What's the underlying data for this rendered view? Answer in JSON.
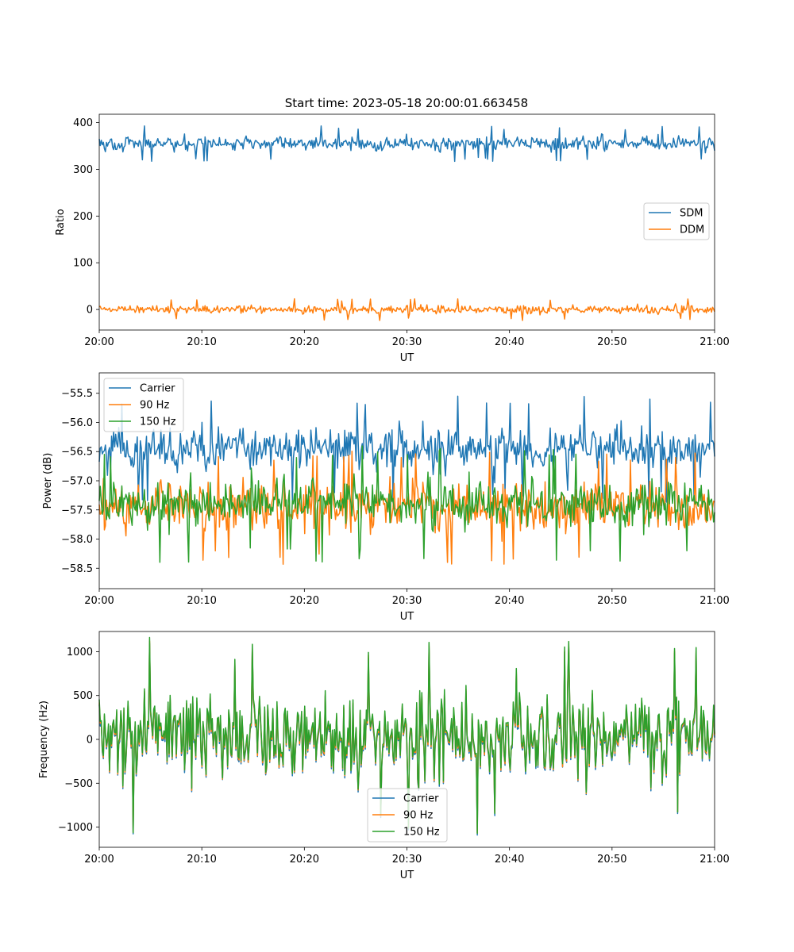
{
  "figure": {
    "title": "Start time: 2023-05-18 20:00:01.663458"
  },
  "chart_data": [
    {
      "type": "line",
      "title": "Start time: 2023-05-18 20:00:01.663458",
      "xlabel": "UT",
      "ylabel": "Ratio",
      "x_range": [
        "20:00",
        "21:00"
      ],
      "x_ticks": [
        "20:00",
        "20:10",
        "20:20",
        "20:30",
        "20:40",
        "20:50",
        "21:00"
      ],
      "ylim": [
        -44,
        418
      ],
      "y_ticks": [
        0,
        100,
        200,
        300,
        400
      ],
      "legend_position": "center-right",
      "series": [
        {
          "name": "SDM",
          "color": "#1f77b4",
          "mean": 355,
          "noise": 12,
          "spike": 38
        },
        {
          "name": "DDM",
          "color": "#ff7f0e",
          "mean": 0,
          "noise": 7,
          "spike": 24
        }
      ]
    },
    {
      "type": "line",
      "title": "",
      "xlabel": "UT",
      "ylabel": "Power (dB)",
      "x_range": [
        "20:00",
        "21:00"
      ],
      "x_ticks": [
        "20:00",
        "20:10",
        "20:20",
        "20:30",
        "20:40",
        "20:50",
        "21:00"
      ],
      "ylim": [
        -58.85,
        -55.15
      ],
      "y_ticks": [
        -58.5,
        -58.0,
        -57.5,
        -57.0,
        -56.5,
        -56.0,
        -55.5
      ],
      "legend_position": "upper-left",
      "series": [
        {
          "name": "Carrier",
          "color": "#1f77b4",
          "mean": -56.45,
          "noise": 0.3,
          "spike": 0.95
        },
        {
          "name": "90 Hz",
          "color": "#ff7f0e",
          "mean": -57.45,
          "noise": 0.33,
          "spike": 1.0
        },
        {
          "name": "150 Hz",
          "color": "#2ca02c",
          "mean": -57.4,
          "noise": 0.33,
          "spike": 1.0
        }
      ]
    },
    {
      "type": "line",
      "title": "",
      "xlabel": "UT",
      "ylabel": "Frequency (Hz)",
      "x_range": [
        "20:00",
        "21:00"
      ],
      "x_ticks": [
        "20:00",
        "20:10",
        "20:20",
        "20:30",
        "20:40",
        "20:50",
        "21:00"
      ],
      "ylim": [
        -1230,
        1230
      ],
      "y_ticks": [
        -1000,
        -500,
        0,
        500,
        1000
      ],
      "legend_position": "lower-center",
      "series": [
        {
          "name": "Carrier",
          "color": "#1f77b4",
          "mean": 0,
          "noise": 380,
          "spike": 1120
        },
        {
          "name": "90 Hz",
          "color": "#ff7f0e",
          "mean": 0,
          "noise": 380,
          "spike": 1120
        },
        {
          "name": "150 Hz",
          "color": "#2ca02c",
          "mean": 0,
          "noise": 380,
          "spike": 1190
        }
      ]
    }
  ]
}
